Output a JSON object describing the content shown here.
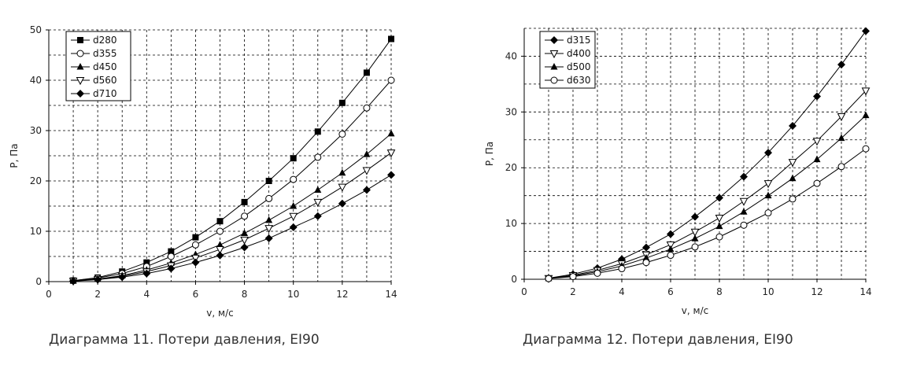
{
  "chart_data": [
    {
      "type": "line",
      "xlabel": "v, м/с",
      "ylabel": "P, Па",
      "caption": "Диаграмма 11. Потери давления, EI90",
      "xlim": [
        0,
        14
      ],
      "ylim": [
        0,
        50
      ],
      "xticks": [
        "0",
        "2",
        "4",
        "6",
        "8",
        "10",
        "12",
        "14"
      ],
      "yticks": [
        "0",
        "10",
        "20",
        "30",
        "40",
        "50"
      ],
      "grid": true,
      "legend_position": "top-left",
      "x": [
        1,
        2,
        3,
        4,
        5,
        6,
        7,
        8,
        9,
        10,
        11,
        12,
        13,
        14
      ],
      "series": [
        {
          "name": "d280",
          "marker": "square",
          "values": [
            0.2,
            0.8,
            2.0,
            3.8,
            6.0,
            8.8,
            12.0,
            15.8,
            20.0,
            24.5,
            29.8,
            35.5,
            41.5,
            48.2
          ]
        },
        {
          "name": "d355",
          "marker": "circle-open",
          "values": [
            0.2,
            0.7,
            1.6,
            3.0,
            5.0,
            7.3,
            10.0,
            13.0,
            16.5,
            20.3,
            24.7,
            29.3,
            34.5,
            40.0
          ]
        },
        {
          "name": "d450",
          "marker": "triangle",
          "values": [
            0.15,
            0.5,
            1.2,
            2.3,
            3.7,
            5.4,
            7.3,
            9.6,
            12.2,
            15.0,
            18.2,
            21.6,
            25.3,
            29.4
          ]
        },
        {
          "name": "d560",
          "marker": "triangle-down-open",
          "values": [
            0.13,
            0.45,
            1.05,
            2.0,
            3.2,
            4.7,
            6.4,
            8.3,
            10.6,
            13.0,
            15.8,
            18.8,
            22.1,
            25.6
          ]
        },
        {
          "name": "d710",
          "marker": "diamond",
          "values": [
            0.1,
            0.4,
            0.9,
            1.6,
            2.6,
            3.8,
            5.2,
            6.8,
            8.6,
            10.8,
            13.0,
            15.5,
            18.2,
            21.2
          ]
        }
      ]
    },
    {
      "type": "line",
      "xlabel": "v, м/с",
      "ylabel": "P, Па",
      "caption": "Диаграмма 12. Потери давления, EI90",
      "xlim": [
        0,
        14
      ],
      "ylim": [
        0,
        45
      ],
      "xticks": [
        "0",
        "2",
        "4",
        "6",
        "8",
        "10",
        "12",
        "14"
      ],
      "yticks": [
        "0",
        "10",
        "20",
        "30",
        "40"
      ],
      "grid": true,
      "legend_position": "top-left",
      "x": [
        1,
        2,
        3,
        4,
        5,
        6,
        7,
        8,
        9,
        10,
        11,
        12,
        13,
        14
      ],
      "series": [
        {
          "name": "d315",
          "marker": "diamond",
          "values": [
            0.2,
            0.9,
            2.0,
            3.6,
            5.7,
            8.1,
            11.2,
            14.6,
            18.4,
            22.7,
            27.5,
            32.8,
            38.5,
            44.5
          ]
        },
        {
          "name": "d400",
          "marker": "triangle-down-open",
          "values": [
            0.17,
            0.7,
            1.6,
            2.8,
            4.4,
            6.2,
            8.5,
            11.0,
            14.0,
            17.2,
            21.0,
            24.8,
            29.2,
            33.8
          ]
        },
        {
          "name": "d500",
          "marker": "triangle",
          "values": [
            0.15,
            0.6,
            1.35,
            2.4,
            3.8,
            5.4,
            7.3,
            9.5,
            12.1,
            15.0,
            18.1,
            21.5,
            25.3,
            29.4
          ]
        },
        {
          "name": "d630",
          "marker": "circle-open",
          "values": [
            0.12,
            0.48,
            1.08,
            1.9,
            3.0,
            4.3,
            5.8,
            7.6,
            9.7,
            11.9,
            14.4,
            17.2,
            20.2,
            23.4
          ]
        }
      ]
    }
  ]
}
